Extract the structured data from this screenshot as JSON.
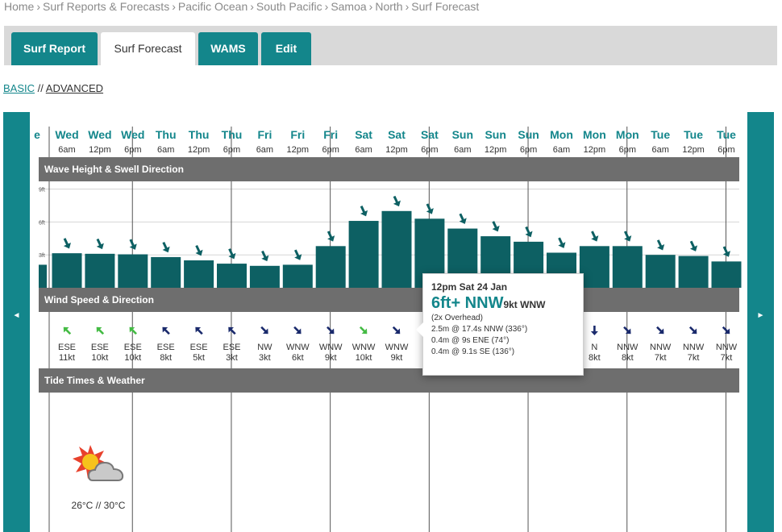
{
  "breadcrumb": [
    "Home",
    "Surf Reports & Forecasts",
    "Pacific Ocean",
    "South Pacific",
    "Samoa",
    "North",
    "Surf Forecast"
  ],
  "tabs": [
    {
      "label": "Surf Report",
      "active": false
    },
    {
      "label": "Surf Forecast",
      "active": true
    },
    {
      "label": "WAMS",
      "active": false
    },
    {
      "label": "Edit",
      "active": false
    }
  ],
  "modes": {
    "basic": "BASIC",
    "sep": "//",
    "advanced": "ADVANCED"
  },
  "nav": {
    "prev": "◄",
    "next": "►"
  },
  "partial_day": "e",
  "columns": [
    {
      "day": "Wed",
      "time": "6am",
      "wave_ft": 3.15,
      "wind_dir": "ESE",
      "wind_speed": "11kt",
      "wind_color": "#44bb44"
    },
    {
      "day": "Wed",
      "time": "12pm",
      "wave_ft": 3.1,
      "wind_dir": "ESE",
      "wind_speed": "10kt",
      "wind_color": "#44bb44"
    },
    {
      "day": "Wed",
      "time": "6pm",
      "wave_ft": 3.05,
      "wind_dir": "ESE",
      "wind_speed": "10kt",
      "wind_color": "#44bb44"
    },
    {
      "day": "Thu",
      "time": "6am",
      "wave_ft": 2.8,
      "wind_dir": "ESE",
      "wind_speed": "8kt",
      "wind_color": "#1a2a6c"
    },
    {
      "day": "Thu",
      "time": "12pm",
      "wave_ft": 2.5,
      "wind_dir": "ESE",
      "wind_speed": "5kt",
      "wind_color": "#1a2a6c"
    },
    {
      "day": "Thu",
      "time": "6pm",
      "wave_ft": 2.2,
      "wind_dir": "ESE",
      "wind_speed": "3kt",
      "wind_color": "#1a2a6c"
    },
    {
      "day": "Fri",
      "time": "6am",
      "wave_ft": 2.0,
      "wind_dir": "NW",
      "wind_speed": "3kt",
      "wind_color": "#1a2a6c"
    },
    {
      "day": "Fri",
      "time": "12pm",
      "wave_ft": 2.1,
      "wind_dir": "WNW",
      "wind_speed": "6kt",
      "wind_color": "#1a2a6c"
    },
    {
      "day": "Fri",
      "time": "6pm",
      "wave_ft": 3.8,
      "wind_dir": "WNW",
      "wind_speed": "9kt",
      "wind_color": "#1a2a6c"
    },
    {
      "day": "Sat",
      "time": "6am",
      "wave_ft": 6.1,
      "wind_dir": "WNW",
      "wind_speed": "10kt",
      "wind_color": "#44bb44"
    },
    {
      "day": "Sat",
      "time": "12pm",
      "wave_ft": 7.0,
      "wind_dir": "WNW",
      "wind_speed": "9kt",
      "wind_color": "#1a2a6c"
    },
    {
      "day": "Sat",
      "time": "6pm",
      "wave_ft": 6.3,
      "wind_dir": "",
      "wind_speed": "",
      "wind_color": "#1a2a6c"
    },
    {
      "day": "Sun",
      "time": "6am",
      "wave_ft": 5.4,
      "wind_dir": "",
      "wind_speed": "",
      "wind_color": "#1a2a6c"
    },
    {
      "day": "Sun",
      "time": "12pm",
      "wave_ft": 4.7,
      "wind_dir": "",
      "wind_speed": "",
      "wind_color": "#1a2a6c"
    },
    {
      "day": "Sun",
      "time": "6pm",
      "wave_ft": 4.2,
      "wind_dir": "",
      "wind_speed": "",
      "wind_color": "#1a2a6c"
    },
    {
      "day": "Mon",
      "time": "6am",
      "wave_ft": 3.2,
      "wind_dir": "",
      "wind_speed": "",
      "wind_color": "#1a2a6c"
    },
    {
      "day": "Mon",
      "time": "12pm",
      "wave_ft": 3.8,
      "wind_dir": "N",
      "wind_speed": "8kt",
      "wind_color": "#1a2a6c"
    },
    {
      "day": "Mon",
      "time": "6pm",
      "wave_ft": 3.8,
      "wind_dir": "NNW",
      "wind_speed": "8kt",
      "wind_color": "#1a2a6c"
    },
    {
      "day": "Tue",
      "time": "6am",
      "wave_ft": 3.0,
      "wind_dir": "NNW",
      "wind_speed": "7kt",
      "wind_color": "#1a2a6c"
    },
    {
      "day": "Tue",
      "time": "12pm",
      "wave_ft": 2.9,
      "wind_dir": "NNW",
      "wind_speed": "7kt",
      "wind_color": "#1a2a6c"
    },
    {
      "day": "Tue",
      "time": "6pm",
      "wave_ft": 2.4,
      "wind_dir": "NNW",
      "wind_speed": "7kt",
      "wind_color": "#1a2a6c"
    }
  ],
  "sections": {
    "wave": "Wave Height & Swell Direction",
    "wind": "Wind Speed & Direction",
    "tide": "Tide Times & Weather"
  },
  "wave_axis": {
    "ticks": [
      {
        "label": "9ft",
        "value": 9
      },
      {
        "label": "6ft",
        "value": 6
      },
      {
        "label": "3ft",
        "value": 3
      }
    ]
  },
  "tooltip": {
    "date": "12pm Sat 24 Jan",
    "height": "6ft+ NNW",
    "wind": "9kt WNW",
    "overhead": "(2x Overhead)",
    "swells": [
      "2.5m @ 17.4s NNW (336°)",
      "0.4m @ 9s ENE (74°)",
      "0.4m @ 9.1s SE (136°)"
    ]
  },
  "weather": {
    "icon": "sun-cloud-icon",
    "temperature": "26°C // 30°C"
  },
  "colors": {
    "accent": "#13868b",
    "bar": "#0d6063",
    "band": "#6e6e6e"
  }
}
